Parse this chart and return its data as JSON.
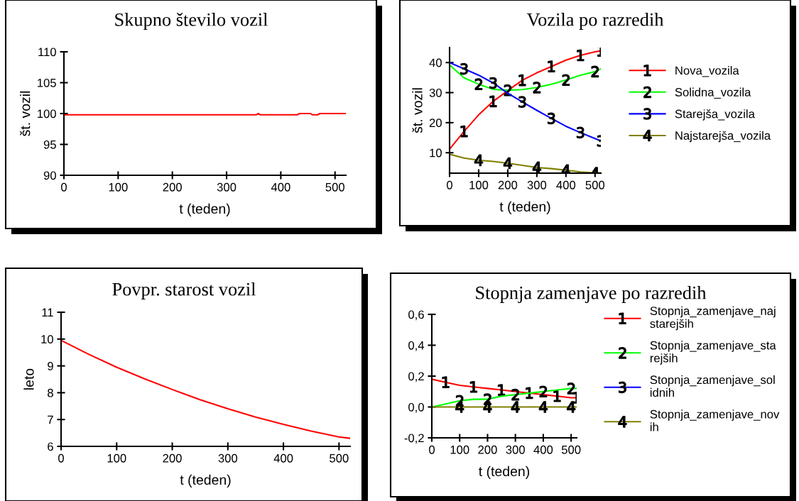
{
  "chart_data": [
    {
      "type": "line",
      "title": "Skupno število vozil",
      "xlabel": "t (teden)",
      "ylabel": "št. vozil",
      "xlim": [
        0,
        520
      ],
      "xticks": [
        0,
        100,
        200,
        300,
        400,
        500
      ],
      "ylim": [
        90,
        110
      ],
      "yticks": [
        90,
        95,
        100,
        105,
        110
      ],
      "grid": false,
      "legend": false,
      "series": [
        {
          "color": "#ff0000",
          "x": [
            0,
            355,
            358,
            362,
            430,
            435,
            455,
            458,
            468,
            472,
            520
          ],
          "values": [
            99.8,
            99.8,
            100,
            99.8,
            99.8,
            100,
            100,
            99.8,
            99.8,
            100,
            100
          ]
        }
      ]
    },
    {
      "type": "line",
      "title": "Vozila po razredih",
      "xlabel": "t (teden)",
      "ylabel": "št. vozil",
      "xlim": [
        0,
        520
      ],
      "xticks": [
        0,
        100,
        200,
        300,
        400,
        500
      ],
      "ylim": [
        3.2,
        45
      ],
      "yticks": [
        10,
        20,
        30,
        40
      ],
      "grid": false,
      "legend": "right",
      "x": [
        0,
        50,
        100,
        150,
        200,
        250,
        300,
        350,
        400,
        450,
        500,
        520
      ],
      "series": [
        {
          "name": "Nova_vozila",
          "color": "#ff0000",
          "values": [
            11.2,
            17.1,
            22.6,
            27.1,
            30.7,
            34.1,
            36.6,
            38.7,
            40.8,
            42.4,
            43.6,
            43.9
          ]
        },
        {
          "name": "Solidna_vozila",
          "color": "#00ff00",
          "values": [
            39.2,
            34.9,
            32.8,
            31.1,
            30.8,
            31.0,
            31.7,
            32.8,
            34.2,
            35.8,
            37.0,
            37.9
          ]
        },
        {
          "name": "Starejša_vozila",
          "color": "#0000ff",
          "values": [
            40.0,
            37.9,
            35.8,
            33.2,
            29.8,
            26.9,
            24.1,
            21.4,
            18.8,
            16.7,
            14.7,
            13.9
          ]
        },
        {
          "name": "Najstarejša_vozila",
          "color": "#808000",
          "values": [
            9.5,
            8.2,
            7.5,
            7.1,
            6.5,
            5.8,
            5.1,
            4.7,
            4.2,
            3.6,
            3.3,
            3.3
          ]
        }
      ]
    },
    {
      "type": "line",
      "title": "Povpr. starost vozil",
      "xlabel": "t (teden)",
      "ylabel": "leto",
      "xlim": [
        0,
        520
      ],
      "xticks": [
        0,
        100,
        200,
        300,
        400,
        500
      ],
      "ylim": [
        6,
        11
      ],
      "yticks": [
        6,
        7,
        8,
        9,
        10,
        11
      ],
      "grid": false,
      "legend": false,
      "x": [
        0,
        50,
        100,
        150,
        200,
        250,
        300,
        350,
        400,
        450,
        500,
        520
      ],
      "series": [
        {
          "color": "#ff0000",
          "values": [
            9.95,
            9.43,
            8.95,
            8.52,
            8.12,
            7.74,
            7.4,
            7.09,
            6.82,
            6.57,
            6.35,
            6.3
          ]
        }
      ]
    },
    {
      "type": "line",
      "title": "Stopnja zamenjave po razredih",
      "xlabel": "t (teden)",
      "xlim": [
        0,
        520
      ],
      "xticks": [
        0,
        100,
        200,
        300,
        400,
        500
      ],
      "ylim": [
        -0.2,
        0.6
      ],
      "yticks": [
        {
          "value": -0.2,
          "label": "-0,2"
        },
        {
          "value": 0.0,
          "label": "0,0"
        },
        {
          "value": 0.2,
          "label": "0,2"
        },
        {
          "value": 0.4,
          "label": "0,4"
        },
        {
          "value": 0.6,
          "label": "0,6"
        }
      ],
      "grid": false,
      "legend": "right",
      "x": [
        0,
        50,
        100,
        150,
        200,
        250,
        300,
        350,
        400,
        450,
        500,
        520
      ],
      "series": [
        {
          "name": "Stopnja_zamenjave_najstarejših",
          "color": "#ff0000",
          "values": [
            0.18,
            0.16,
            0.14,
            0.13,
            0.12,
            0.11,
            0.1,
            0.09,
            0.08,
            0.07,
            0.06,
            0.06
          ]
        },
        {
          "name": "Stopnja_zamenjave_starejših",
          "color": "#00ff00",
          "values": [
            0.0,
            0.02,
            0.04,
            0.05,
            0.05,
            0.07,
            0.08,
            0.09,
            0.1,
            0.11,
            0.12,
            0.12
          ]
        },
        {
          "name": "Stopnja_zamenjave_solidnih",
          "color": "#0000ff",
          "values": [
            null,
            null,
            null,
            null,
            null,
            null,
            null,
            null,
            null,
            null,
            null,
            null
          ]
        },
        {
          "name": "Stopnja_zamenjave_novih",
          "color": "#808000",
          "values": [
            0.0,
            0.0,
            0.0,
            0.0,
            0.0,
            0.0,
            0.0,
            0.0,
            0.0,
            0.0,
            0.0,
            0.0
          ]
        }
      ]
    }
  ]
}
